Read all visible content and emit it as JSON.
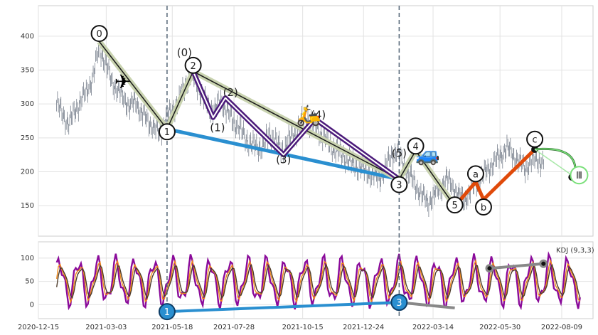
{
  "chart_data": [
    {
      "type": "candlestick",
      "panel": "price",
      "ylim": [
        105,
        445
      ],
      "yticks": [
        150,
        200,
        250,
        300,
        350,
        400
      ],
      "x_range": [
        "2020-12-15",
        "2022-09-14"
      ],
      "grid": true,
      "price_series": [
        [
          "2021-01-05",
          300
        ],
        [
          "2021-01-12",
          285
        ],
        [
          "2021-01-19",
          270
        ],
        [
          "2021-01-26",
          290
        ],
        [
          "2021-02-02",
          305
        ],
        [
          "2021-02-09",
          320
        ],
        [
          "2021-02-16",
          340
        ],
        [
          "2021-02-23",
          385
        ],
        [
          "2021-03-02",
          360
        ],
        [
          "2021-03-09",
          335
        ],
        [
          "2021-03-16",
          320
        ],
        [
          "2021-03-23",
          310
        ],
        [
          "2021-03-30",
          295
        ],
        [
          "2021-04-06",
          305
        ],
        [
          "2021-04-13",
          285
        ],
        [
          "2021-04-20",
          275
        ],
        [
          "2021-04-27",
          265
        ],
        [
          "2021-05-04",
          255
        ],
        [
          "2021-05-11",
          280
        ],
        [
          "2021-05-18",
          290
        ],
        [
          "2021-05-25",
          305
        ],
        [
          "2021-06-01",
          325
        ],
        [
          "2021-06-08",
          345
        ],
        [
          "2021-06-15",
          330
        ],
        [
          "2021-06-22",
          310
        ],
        [
          "2021-06-29",
          295
        ],
        [
          "2021-07-06",
          290
        ],
        [
          "2021-07-13",
          305
        ],
        [
          "2021-07-20",
          290
        ],
        [
          "2021-07-27",
          275
        ],
        [
          "2021-08-03",
          265
        ],
        [
          "2021-08-10",
          250
        ],
        [
          "2021-08-17",
          240
        ],
        [
          "2021-08-24",
          235
        ],
        [
          "2021-08-31",
          240
        ],
        [
          "2021-09-07",
          255
        ],
        [
          "2021-09-14",
          245
        ],
        [
          "2021-09-21",
          230
        ],
        [
          "2021-09-28",
          245
        ],
        [
          "2021-10-05",
          255
        ],
        [
          "2021-10-12",
          270
        ],
        [
          "2021-10-19",
          280
        ],
        [
          "2021-10-26",
          270
        ],
        [
          "2021-11-02",
          260
        ],
        [
          "2021-11-09",
          250
        ],
        [
          "2021-11-16",
          240
        ],
        [
          "2021-11-23",
          230
        ],
        [
          "2021-11-30",
          225
        ],
        [
          "2021-12-07",
          215
        ],
        [
          "2021-12-14",
          210
        ],
        [
          "2021-12-21",
          205
        ],
        [
          "2021-12-28",
          200
        ],
        [
          "2022-01-04",
          195
        ],
        [
          "2022-01-11",
          190
        ],
        [
          "2022-01-18",
          205
        ],
        [
          "2022-01-25",
          225
        ],
        [
          "2022-02-01",
          230
        ],
        [
          "2022-02-08",
          210
        ],
        [
          "2022-02-15",
          195
        ],
        [
          "2022-02-22",
          180
        ],
        [
          "2022-03-01",
          165
        ],
        [
          "2022-03-08",
          155
        ],
        [
          "2022-03-15",
          165
        ],
        [
          "2022-03-22",
          175
        ],
        [
          "2022-03-29",
          190
        ],
        [
          "2022-04-05",
          180
        ],
        [
          "2022-04-12",
          165
        ],
        [
          "2022-04-19",
          160
        ],
        [
          "2022-04-26",
          170
        ],
        [
          "2022-05-03",
          185
        ],
        [
          "2022-05-10",
          195
        ],
        [
          "2022-05-17",
          205
        ],
        [
          "2022-05-24",
          215
        ],
        [
          "2022-05-31",
          225
        ],
        [
          "2022-06-07",
          235
        ],
        [
          "2022-06-14",
          225
        ],
        [
          "2022-06-21",
          215
        ],
        [
          "2022-06-28",
          205
        ],
        [
          "2022-07-05",
          215
        ],
        [
          "2022-07-12",
          220
        ],
        [
          "2022-07-19",
          210
        ]
      ],
      "trend_lines": [
        {
          "points": [
            [
              "2021-05-12",
              263
            ],
            [
              "2022-02-03",
              189
            ]
          ],
          "color": "#2a8fd0"
        }
      ],
      "wave_path": [
        [
          "2021-02-23",
          392
        ],
        [
          "2021-05-12",
          263
        ],
        [
          "2021-06-11",
          348
        ],
        [
          "2022-02-03",
          189
        ]
      ],
      "sub_wave_path": [
        [
          "2021-06-11",
          348
        ],
        [
          "2021-07-04",
          280
        ],
        [
          "2021-07-18",
          309
        ],
        [
          "2021-09-23",
          225
        ],
        [
          "2021-10-29",
          278
        ],
        [
          "2022-02-03",
          189
        ]
      ],
      "wave_path_2": [
        [
          "2022-02-03",
          189
        ],
        [
          "2022-02-22",
          231
        ],
        [
          "2022-04-08",
          149
        ]
      ],
      "abc_path": [
        [
          "2022-04-08",
          149
        ],
        [
          "2022-05-02",
          185
        ],
        [
          "2022-05-11",
          159
        ],
        [
          "2022-07-09",
          233
        ]
      ],
      "projection_arrow": [
        [
          "2022-07-09",
          233
        ],
        [
          "2022-08-24",
          192
        ]
      ],
      "vlines": [
        "2021-05-12",
        "2022-02-03"
      ],
      "labels": [
        {
          "text": "0",
          "at": [
            "2021-02-23",
            404
          ],
          "circle": true
        },
        {
          "text": "(0)",
          "at": [
            "2021-06-01",
            376
          ],
          "circle": false
        },
        {
          "text": "2",
          "at": [
            "2021-06-11",
            357
          ],
          "circle": true
        },
        {
          "text": "(2)",
          "at": [
            "2021-07-24",
            317
          ],
          "circle": false
        },
        {
          "text": "(1)",
          "at": [
            "2021-07-09",
            265
          ],
          "circle": false
        },
        {
          "text": "(4)",
          "at": [
            "2021-11-02",
            284
          ],
          "circle": false
        },
        {
          "text": "(3)",
          "at": [
            "2021-09-23",
            218
          ],
          "circle": false
        },
        {
          "text": "1",
          "at": [
            "2021-05-12",
            259
          ],
          "circle": true
        },
        {
          "text": "(5)",
          "at": [
            "2022-02-03",
            227
          ],
          "circle": false
        },
        {
          "text": "3",
          "at": [
            "2022-02-03",
            181
          ],
          "circle": true
        },
        {
          "text": "4",
          "at": [
            "2022-02-22",
            238
          ],
          "circle": true
        },
        {
          "text": "5",
          "at": [
            "2022-04-08",
            151
          ],
          "circle": true
        },
        {
          "text": "a",
          "at": [
            "2022-05-02",
            197
          ],
          "circle": true
        },
        {
          "text": "b",
          "at": [
            "2022-05-11",
            148
          ],
          "circle": true
        },
        {
          "text": "c",
          "at": [
            "2022-07-09",
            248
          ],
          "circle": true
        },
        {
          "text": "Ⅲ",
          "at": [
            "2022-08-29",
            195
          ],
          "circle": true,
          "green": true
        }
      ],
      "emoji_markers": [
        {
          "glyph": "✈",
          "at": [
            "2021-03-22",
            333
          ]
        },
        {
          "glyph": "🛵",
          "at": [
            "2021-10-22",
            284
          ]
        },
        {
          "glyph": "🚙",
          "at": [
            "2022-03-08",
            226
          ]
        }
      ]
    },
    {
      "type": "line",
      "panel": "indicator",
      "title": "KDJ (9,3,3)",
      "ylim": [
        -30,
        135
      ],
      "yticks": [
        0,
        50,
        100
      ],
      "xticks": [
        "2020-12-15",
        "2021-03-03",
        "2021-05-18",
        "2021-07-28",
        "2021-10-15",
        "2021-12-24",
        "2022-03-14",
        "2022-05-30",
        "2022-08-09"
      ],
      "grid": true,
      "divergence_lines": [
        {
          "points": [
            [
              "2021-05-12",
              -15
            ],
            [
              "2022-02-03",
              5
            ]
          ],
          "color": "#2a8fd0"
        },
        {
          "points": [
            [
              "2022-02-03",
              5
            ],
            [
              "2022-04-08",
              -7
            ]
          ],
          "color": "#888888"
        },
        {
          "points": [
            [
              "2022-05-18",
              78
            ],
            [
              "2022-07-19",
              88
            ]
          ],
          "color": "#888888"
        }
      ],
      "labels": [
        {
          "text": "1",
          "at": [
            "2021-05-12",
            -15
          ],
          "circle": true,
          "filled": true
        },
        {
          "text": "3",
          "at": [
            "2022-02-03",
            5
          ],
          "circle": true,
          "filled": true
        }
      ]
    }
  ]
}
